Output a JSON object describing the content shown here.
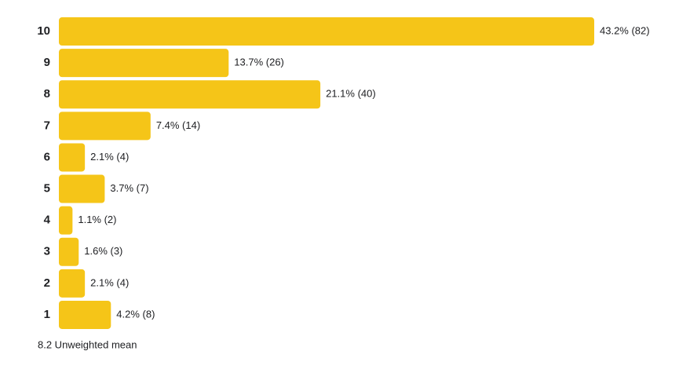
{
  "chart_data": {
    "type": "bar",
    "orientation": "horizontal",
    "color": "#f5c518",
    "categories": [
      "10",
      "9",
      "8",
      "7",
      "6",
      "5",
      "4",
      "3",
      "2",
      "1"
    ],
    "values": [
      43.2,
      13.7,
      21.1,
      7.4,
      2.1,
      3.7,
      1.1,
      1.6,
      2.1,
      4.2
    ],
    "value_labels": [
      "43.2% (82)",
      "13.7% (26)",
      "21.1% (40)",
      "7.4% (14)",
      "2.1% (4)",
      "3.7% (7)",
      "1.1% (2)",
      "1.6% (3)",
      "2.1% (4)",
      "4.2% (8)"
    ],
    "footnote": "8.2 Unweighted mean"
  }
}
